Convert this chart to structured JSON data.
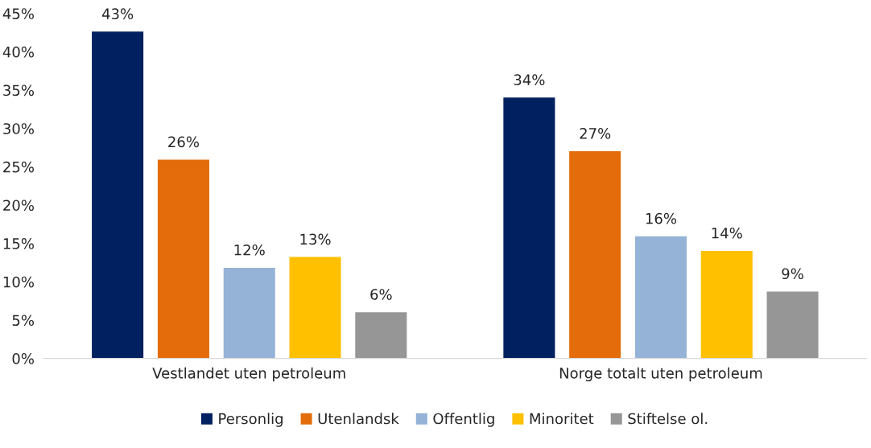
{
  "chart_data": {
    "type": "bar",
    "categories": [
      "Vestlandet uten petroleum",
      "Norge totalt uten petroleum"
    ],
    "series": [
      {
        "name": "Personlig",
        "color": "#002060",
        "values": [
          42.7,
          34.1
        ],
        "value_labels": [
          "43%",
          "34%"
        ]
      },
      {
        "name": "Utenlandsk",
        "color": "#e46c0a",
        "values": [
          26.0,
          27.1
        ],
        "value_labels": [
          "26%",
          "27%"
        ]
      },
      {
        "name": "Offentlig",
        "color": "#95b3d7",
        "values": [
          11.9,
          16.0
        ],
        "value_labels": [
          "12%",
          "16%"
        ]
      },
      {
        "name": "Minoritet",
        "color": "#ffc000",
        "values": [
          13.3,
          14.1
        ],
        "value_labels": [
          "13%",
          "14%"
        ]
      },
      {
        "name": "Stiftelse ol.",
        "color": "#969696",
        "values": [
          6.1,
          8.8
        ],
        "value_labels": [
          "6%",
          "9%"
        ]
      }
    ],
    "ylim": [
      0,
      45
    ],
    "yticks": [
      {
        "value": 0,
        "label": "0%"
      },
      {
        "value": 5,
        "label": "5%"
      },
      {
        "value": 10,
        "label": "10%"
      },
      {
        "value": 15,
        "label": "15%"
      },
      {
        "value": 20,
        "label": "20%"
      },
      {
        "value": 25,
        "label": "25%"
      },
      {
        "value": 30,
        "label": "30%"
      },
      {
        "value": 35,
        "label": "35%"
      },
      {
        "value": 40,
        "label": "40%"
      },
      {
        "value": 45,
        "label": "45%"
      }
    ],
    "grid": false,
    "legend": "bottom"
  }
}
